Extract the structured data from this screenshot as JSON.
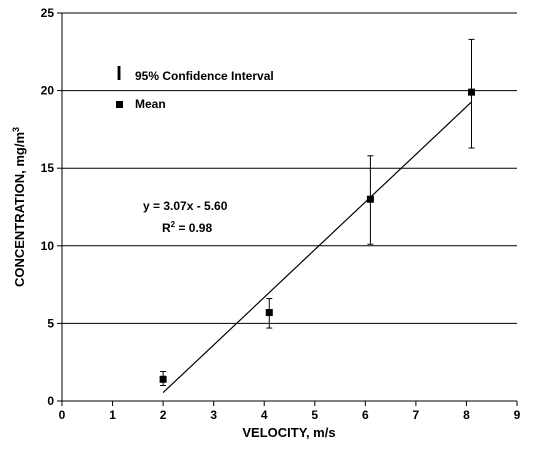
{
  "chart_data": {
    "type": "scatter",
    "title": "",
    "xlabel": "VELOCITY, m/s",
    "ylabel_main": "CONCENTRATION, mg/m",
    "ylabel_sup": "3",
    "xlim": [
      0,
      9
    ],
    "ylim": [
      0,
      25
    ],
    "xticks": [
      "0",
      "1",
      "2",
      "3",
      "4",
      "5",
      "6",
      "7",
      "8",
      "9"
    ],
    "yticks": [
      "0",
      "5",
      "10",
      "15",
      "20",
      "25"
    ],
    "grid": "horizontal",
    "legend_placement": "top-left",
    "legend": {
      "ci_symbol": "I",
      "ci_label": "95% Confidence Interval",
      "mean_label": "Mean"
    },
    "points": [
      {
        "x": 2.0,
        "y": 1.4,
        "ci_low": 1.0,
        "ci_high": 1.9
      },
      {
        "x": 4.1,
        "y": 5.7,
        "ci_low": 4.7,
        "ci_high": 6.6
      },
      {
        "x": 6.1,
        "y": 13.0,
        "ci_low": 10.1,
        "ci_high": 15.8
      },
      {
        "x": 8.1,
        "y": 19.9,
        "ci_low": 16.3,
        "ci_high": 23.3
      }
    ],
    "trendline": {
      "slope": 3.07,
      "intercept": -5.6,
      "x_start": 2.0,
      "x_end": 8.1
    },
    "equation_text": "y = 3.07x - 5.60",
    "r2_main": "R",
    "r2_sup": "2",
    "r2_value": " = 0.98"
  }
}
